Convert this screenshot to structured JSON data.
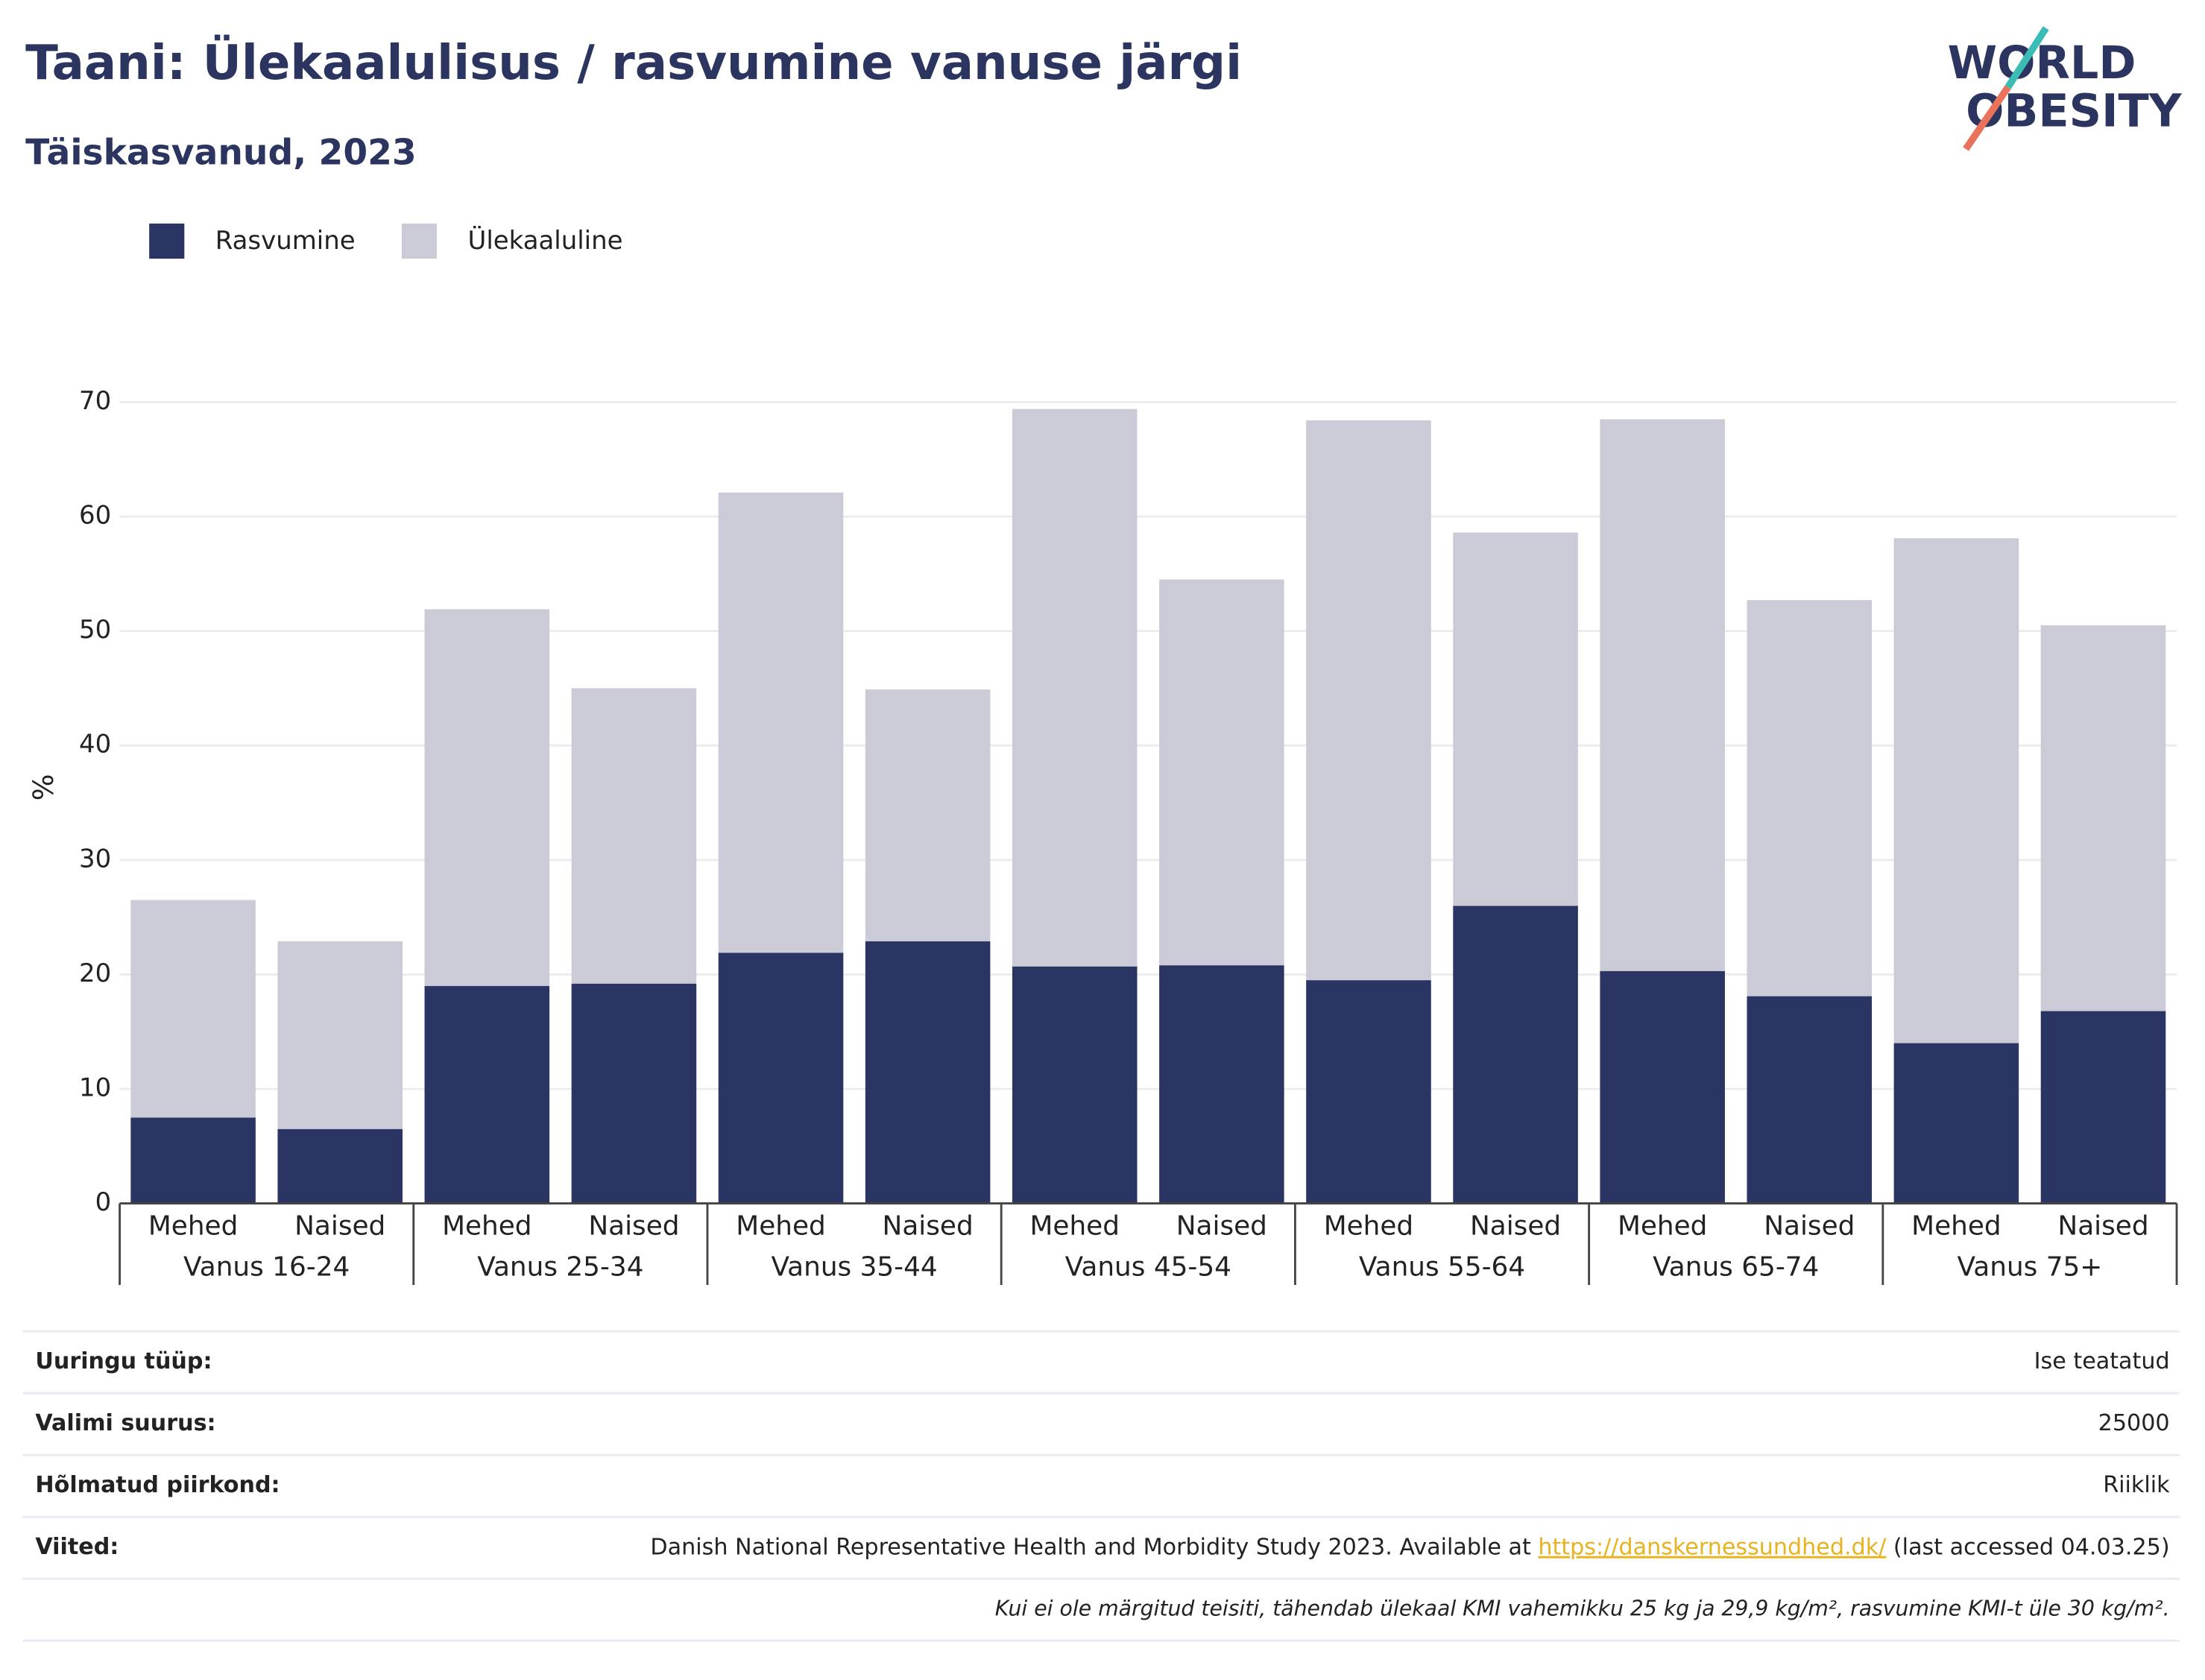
{
  "chart_data": {
    "type": "stacked_bar",
    "title": "Taani: Ülekaalulisus / rasvumine vanuse järgi",
    "subtitle": "Täiskasvanud, 2023",
    "y_label": "%",
    "categories": [
      "Mehed",
      "Naised",
      "Mehed",
      "Naised",
      "Mehed",
      "Naised",
      "Mehed",
      "Naised",
      "Mehed",
      "Naised",
      "Mehed",
      "Naised",
      "Mehed",
      "Naised"
    ],
    "groups": [
      "Vanus 16-24",
      "Vanus 25-34",
      "Vanus 35-44",
      "Vanus 45-54",
      "Vanus 55-64",
      "Vanus 65-74",
      "Vanus 75+"
    ],
    "series": [
      {
        "name": "Rasvumine",
        "color": "#2a3563",
        "values": [
          7.5,
          6.5,
          19.0,
          19.2,
          21.9,
          22.9,
          20.7,
          20.8,
          19.5,
          26.0,
          20.3,
          18.1,
          14.0,
          16.8
        ]
      },
      {
        "name": "Ülekaaluline",
        "color": "#cacbd6",
        "values": [
          19.0,
          16.4,
          32.9,
          25.8,
          40.2,
          22.0,
          48.7,
          33.7,
          48.9,
          32.6,
          48.2,
          34.6,
          44.1,
          33.7
        ]
      }
    ],
    "ylim": [
      0,
      70
    ],
    "yticks": [
      0,
      10,
      20,
      30,
      40,
      50,
      60,
      70
    ],
    "grid": true,
    "legend": "top-left"
  },
  "logo": {
    "line1": "WORLD",
    "line2": "OBESITY"
  },
  "table": {
    "rows": [
      [
        "Uuringu tüüp:",
        "Ise teatatud"
      ],
      [
        "Valimi suurus:",
        "25000"
      ],
      [
        "Hõlmatud piirkond:",
        "Riiklik"
      ],
      [
        "Viited:",
        {
          "text": "Danish National Representative Health and Morbidity Study 2023. Available at ",
          "link": "https://danskernessundhed.dk/",
          "after": " (last accessed 04.03.25)"
        }
      ]
    ],
    "footnote": "Kui ei ole märgitud teisiti, tähendab ülekaal KMI vahemikku 25 kg ja 29,9 kg/m², rasvumine KMI-t üle 30 kg/m²."
  }
}
